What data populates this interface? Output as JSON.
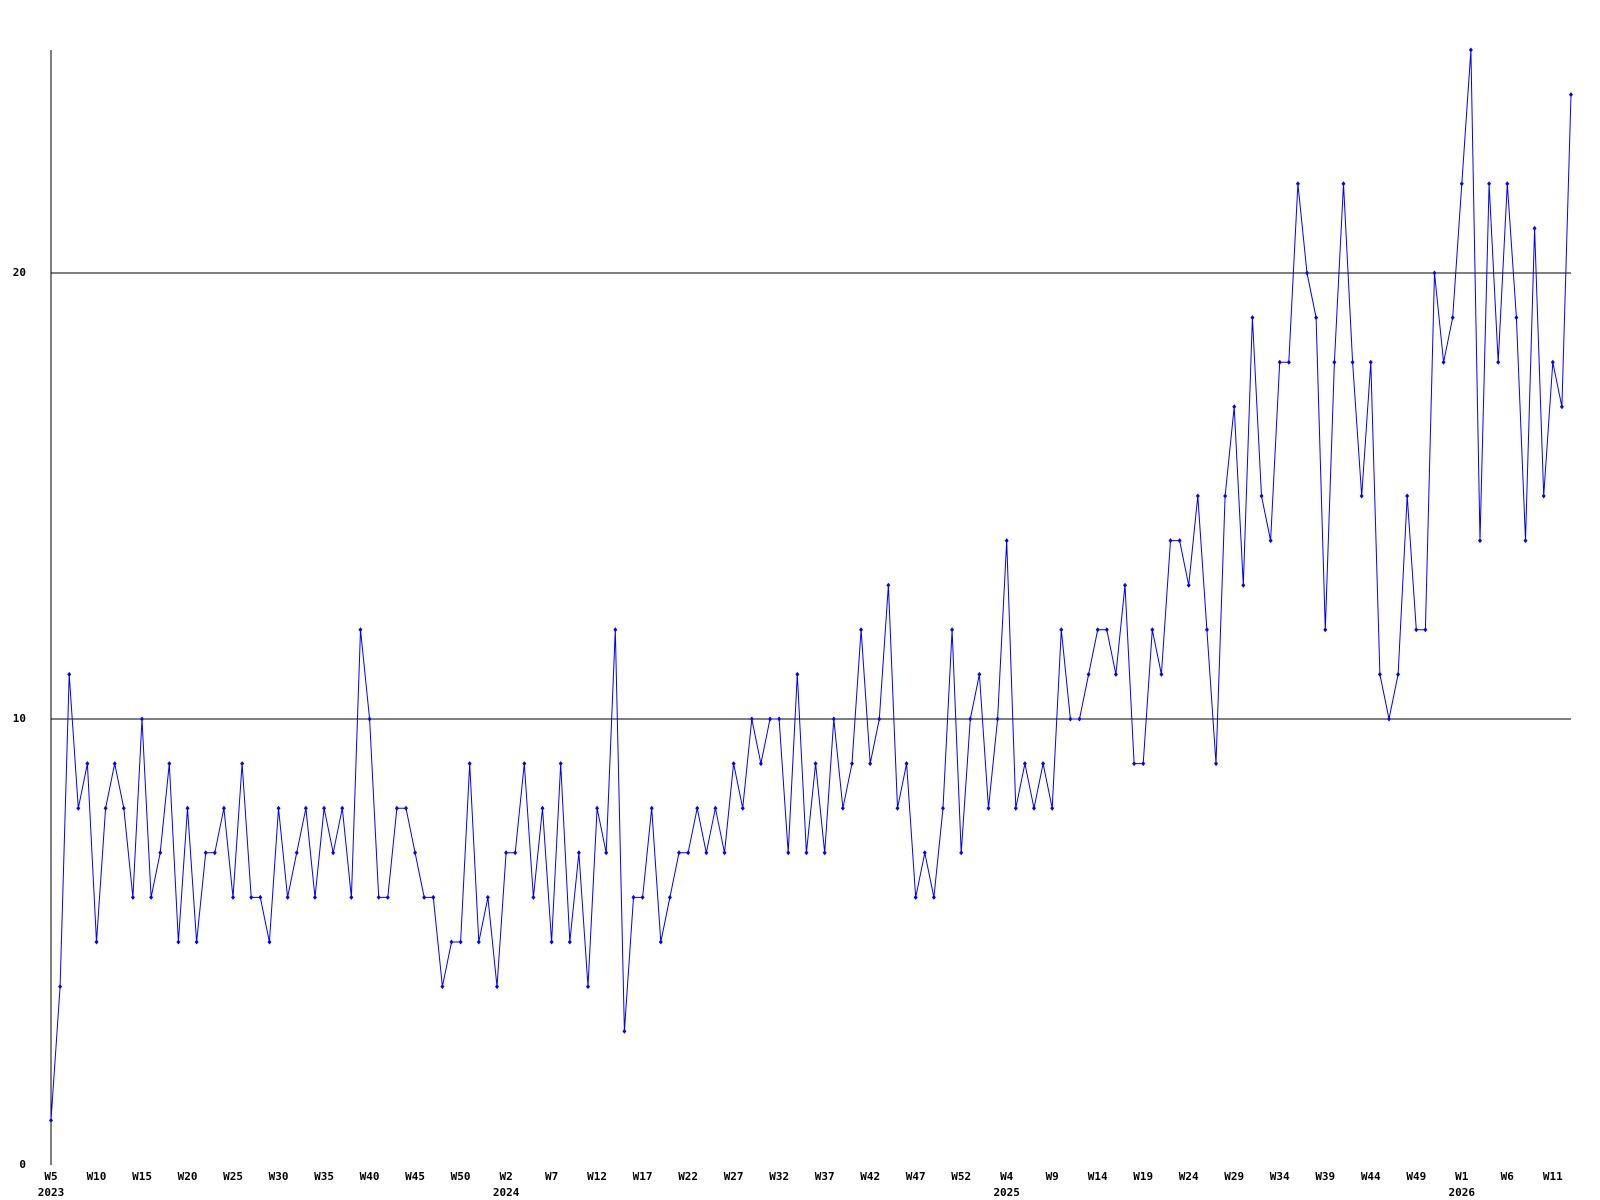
{
  "chart_data": {
    "type": "line",
    "categories": [
      {
        "week": "W5",
        "year": "2023"
      },
      null,
      null,
      null,
      null,
      {
        "week": "W10"
      },
      null,
      null,
      null,
      null,
      {
        "week": "W15"
      },
      null,
      null,
      null,
      null,
      {
        "week": "W20"
      },
      null,
      null,
      null,
      null,
      {
        "week": "W25"
      },
      null,
      null,
      null,
      null,
      {
        "week": "W30"
      },
      null,
      null,
      null,
      null,
      {
        "week": "W35"
      },
      null,
      null,
      null,
      null,
      {
        "week": "W40"
      },
      null,
      null,
      null,
      null,
      {
        "week": "W45"
      },
      null,
      null,
      null,
      null,
      {
        "week": "W50"
      },
      null,
      null,
      null,
      null,
      {
        "week": "W2",
        "year": "2024"
      },
      null,
      null,
      null,
      null,
      {
        "week": "W7"
      },
      null,
      null,
      null,
      null,
      {
        "week": "W12"
      },
      null,
      null,
      null,
      null,
      {
        "week": "W17"
      },
      null,
      null,
      null,
      null,
      {
        "week": "W22"
      },
      null,
      null,
      null,
      null,
      {
        "week": "W27"
      },
      null,
      null,
      null,
      null,
      {
        "week": "W32"
      },
      null,
      null,
      null,
      null,
      {
        "week": "W37"
      },
      null,
      null,
      null,
      null,
      {
        "week": "W42"
      },
      null,
      null,
      null,
      null,
      {
        "week": "W47"
      },
      null,
      null,
      null,
      null,
      {
        "week": "W52"
      },
      null,
      null,
      null,
      null,
      {
        "week": "W4",
        "year": "2025"
      },
      null,
      null,
      null,
      null,
      {
        "week": "W9"
      },
      null,
      null,
      null,
      null,
      {
        "week": "W14"
      },
      null,
      null,
      null,
      null,
      {
        "week": "W19"
      },
      null,
      null,
      null,
      null,
      {
        "week": "W24"
      },
      null,
      null,
      null,
      null,
      {
        "week": "W29"
      },
      null,
      null,
      null,
      null,
      {
        "week": "W34"
      },
      null,
      null,
      null,
      null,
      {
        "week": "W39"
      },
      null,
      null,
      null,
      null,
      {
        "week": "W44"
      },
      null,
      null,
      null,
      null,
      {
        "week": "W49"
      },
      null,
      null,
      null,
      null,
      {
        "week": "W1",
        "year": "2026"
      },
      null,
      null,
      null,
      null,
      {
        "week": "W6"
      },
      null,
      null,
      null,
      null,
      {
        "week": "W11"
      },
      null,
      null
    ],
    "series": [
      {
        "color": "#0000ff",
        "values": [
          1,
          4,
          11,
          8,
          9,
          5,
          8,
          9,
          8,
          6,
          10,
          6,
          7,
          9,
          5,
          8,
          5,
          7,
          7,
          8,
          6,
          9,
          6,
          6,
          5,
          8,
          6,
          7,
          8,
          6,
          8,
          7,
          8,
          6,
          12,
          10,
          6,
          6,
          8,
          8,
          7,
          6,
          6,
          4,
          5,
          5,
          9,
          5,
          6,
          4,
          7,
          7,
          9,
          6,
          8,
          5,
          9,
          5,
          7,
          4,
          8,
          7,
          12,
          3,
          6,
          6,
          8,
          5,
          6,
          7,
          7,
          8,
          7,
          8,
          7,
          9,
          8,
          10,
          9,
          10,
          10,
          7,
          11,
          7,
          9,
          7,
          10,
          8,
          9,
          12,
          9,
          10,
          13,
          8,
          9,
          6,
          7,
          6,
          8,
          12,
          7,
          10,
          11,
          8,
          10,
          14,
          8,
          9,
          8,
          9,
          8,
          12,
          10,
          10,
          11,
          12,
          12,
          11,
          13,
          9,
          9,
          12,
          11,
          14,
          14,
          13,
          15,
          12,
          9,
          15,
          17,
          13,
          19,
          15,
          14,
          18,
          18,
          22,
          20,
          19,
          12,
          18,
          22,
          18,
          15,
          18,
          11,
          10,
          11,
          15,
          12,
          12,
          20,
          18,
          19,
          22,
          25,
          14,
          22,
          18,
          22,
          19,
          14,
          21,
          15,
          18,
          17,
          24
        ]
      }
    ],
    "ylim": [
      0,
      25
    ],
    "yticks": [
      0,
      10,
      20
    ],
    "grid": true
  }
}
